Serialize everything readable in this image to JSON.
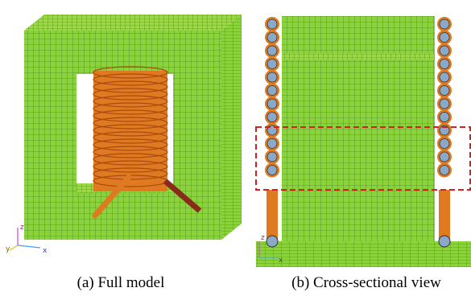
{
  "panels": [
    {
      "caption": "(a) Full model",
      "axes": {
        "z": "z",
        "y": "y",
        "x": "x"
      }
    },
    {
      "caption": "(b) Cross-sectional view",
      "axes": {
        "z": "z",
        "x": "x"
      }
    }
  ]
}
